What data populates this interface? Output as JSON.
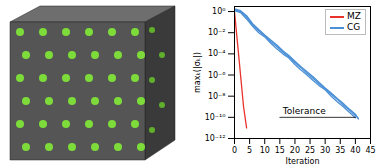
{
  "chart_data": {
    "type": "line",
    "x_label": "Iteration",
    "y_label": "maxₖ(|σₖ|)",
    "log": "y",
    "grid": false,
    "legend": "upper right",
    "xlim": [
      0,
      45
    ],
    "xticks": [
      0,
      5,
      10,
      15,
      20,
      25,
      30,
      35,
      40,
      45
    ],
    "ylim": [
      1e-12,
      3
    ],
    "yticks": [
      {
        "value": 1e-12,
        "label": "10⁻¹²"
      },
      {
        "value": 1e-10,
        "label": "10⁻¹⁰"
      },
      {
        "value": 1e-08,
        "label": "10⁻⁸"
      },
      {
        "value": 1e-06,
        "label": "10⁻⁶"
      },
      {
        "value": 0.0001,
        "label": "10⁻⁴"
      },
      {
        "value": 0.01,
        "label": "10⁻²"
      },
      {
        "value": 1,
        "label": "10⁰"
      }
    ],
    "series": [
      {
        "name": "MZ",
        "color": "#e8322b",
        "x": [
          0,
          1,
          2,
          3,
          4
        ],
        "values": [
          1,
          0.001,
          1e-06,
          1e-09,
          1e-11
        ]
      },
      {
        "name": "CG",
        "color": "#4a8fd6",
        "x": [
          0,
          2,
          4,
          6,
          8,
          10,
          12,
          14,
          16,
          18,
          20,
          22,
          24,
          26,
          28,
          30,
          32,
          34,
          36,
          38,
          40,
          41
        ],
        "values": [
          1.5,
          1.0,
          0.3,
          0.05,
          0.015,
          0.005,
          0.0015,
          0.0005,
          0.00015,
          5e-05,
          1.5e-05,
          5e-06,
          1.5e-06,
          5e-07,
          1.5e-07,
          5e-08,
          1.5e-08,
          5e-09,
          1.5e-09,
          5e-10,
          1.5e-10,
          8e-11
        ]
      },
      {
        "name": "CG",
        "color": "#4a8fd6",
        "x": [
          0,
          2,
          4,
          6,
          8,
          10,
          12,
          14,
          16,
          18,
          20,
          22,
          24,
          26,
          28,
          30,
          32,
          34,
          36,
          38,
          40
        ],
        "values": [
          1.2,
          0.8,
          0.2,
          0.04,
          0.01,
          0.004,
          0.001,
          0.0003,
          0.0001,
          4e-05,
          1e-05,
          3e-06,
          1e-06,
          3e-07,
          1e-07,
          4e-08,
          1e-08,
          3e-09,
          1e-09,
          3e-10,
          9e-11
        ]
      },
      {
        "name": "CG",
        "color": "#4a8fd6",
        "x": [
          0,
          2,
          4,
          6,
          8,
          10,
          12,
          14,
          16,
          18,
          20,
          22,
          24,
          26,
          28,
          30,
          32,
          34,
          36,
          38,
          40,
          41
        ],
        "values": [
          1.8,
          1.2,
          0.4,
          0.07,
          0.02,
          0.006,
          0.002,
          0.0007,
          0.0002,
          7e-05,
          2e-05,
          6e-06,
          2e-06,
          7e-07,
          2e-07,
          6e-08,
          2e-08,
          6e-09,
          2e-09,
          6e-10,
          2e-10,
          7e-11
        ]
      }
    ],
    "annotations": [
      {
        "text": "Tolerance",
        "x": [
          15,
          40
        ],
        "y": 1e-10
      }
    ]
  }
}
